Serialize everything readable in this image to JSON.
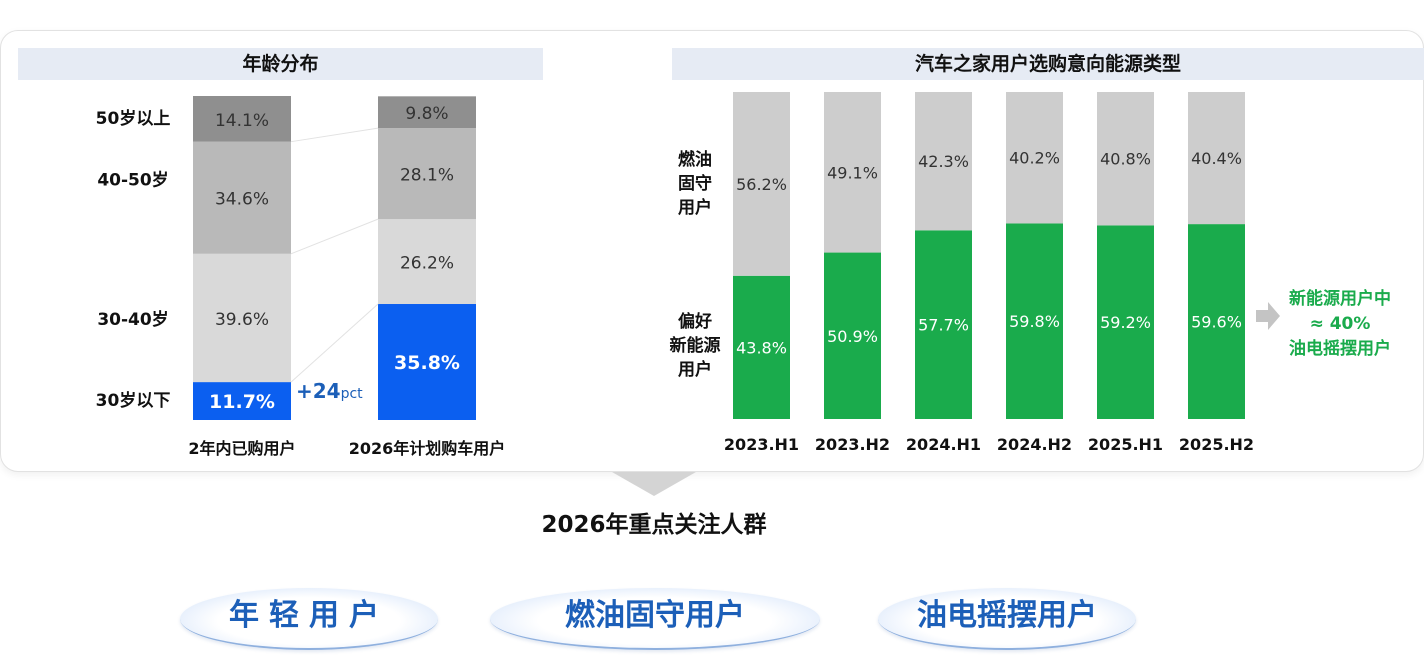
{
  "colors": {
    "blue": "#0b5ff0",
    "green": "#1aab4c",
    "gray_dark": "#8f8f8f",
    "gray_mid": "#b9b9b9",
    "gray_light": "#d9d9d9",
    "gray_bar": "#cdcdcd",
    "header_bg": "#e6ebf4",
    "accent_text": "#1c5fb8"
  },
  "age_panel": {
    "title": "年龄分布",
    "increase_label": "+24",
    "increase_unit": "pct"
  },
  "energy_panel": {
    "title": "汽车之家用户选购意向能源类型",
    "label_fuel": [
      "燃油",
      "固守",
      "用户"
    ],
    "label_nev": [
      "偏好",
      "新能源",
      "用户"
    ],
    "callout": [
      "新能源用户中",
      "≈ 40%",
      "油电摇摆用户"
    ]
  },
  "chart_data": [
    {
      "type": "bar",
      "stacked": true,
      "title": "年龄分布",
      "categories": [
        "2年内已购用户",
        "2026年计划购车用户"
      ],
      "series": [
        {
          "name": "30岁以下",
          "values": [
            11.7,
            35.8
          ],
          "labels": [
            "11.7%",
            "35.8%"
          ],
          "color": "#0b5ff0"
        },
        {
          "name": "30-40岁",
          "values": [
            39.6,
            26.2
          ],
          "labels": [
            "39.6%",
            "26.2%"
          ],
          "color": "#d9d9d9"
        },
        {
          "name": "40-50岁",
          "values": [
            34.6,
            28.1
          ],
          "labels": [
            "34.6%",
            "28.1%"
          ],
          "color": "#b9b9b9"
        },
        {
          "name": "50岁以上",
          "values": [
            14.1,
            9.8
          ],
          "labels": [
            "14.1%",
            "9.8%"
          ],
          "color": "#8f8f8f"
        }
      ],
      "ylim": [
        0,
        100
      ],
      "legend": "left",
      "grid": false
    },
    {
      "type": "bar",
      "stacked": true,
      "title": "汽车之家用户选购意向能源类型",
      "categories": [
        "2023.H1",
        "2023.H2",
        "2024.H1",
        "2024.H2",
        "2025.H1",
        "2025.H2"
      ],
      "series": [
        {
          "name": "偏好新能源用户",
          "values": [
            43.8,
            50.9,
            57.7,
            59.8,
            59.2,
            59.6
          ],
          "labels": [
            "43.8%",
            "50.9%",
            "57.7%",
            "59.8%",
            "59.2%",
            "59.6%"
          ],
          "color": "#1aab4c"
        },
        {
          "name": "燃油固守用户",
          "values": [
            56.2,
            49.1,
            42.3,
            40.2,
            40.8,
            40.4
          ],
          "labels": [
            "56.2%",
            "49.1%",
            "42.3%",
            "40.2%",
            "40.8%",
            "40.4%"
          ],
          "color": "#cdcdcd"
        }
      ],
      "ylim": [
        0,
        100
      ],
      "legend": "left",
      "grid": false
    }
  ],
  "focus": {
    "title": "2026年重点关注人群",
    "groups": [
      "年轻用户",
      "燃油固守用户",
      "油电摇摆用户"
    ]
  }
}
